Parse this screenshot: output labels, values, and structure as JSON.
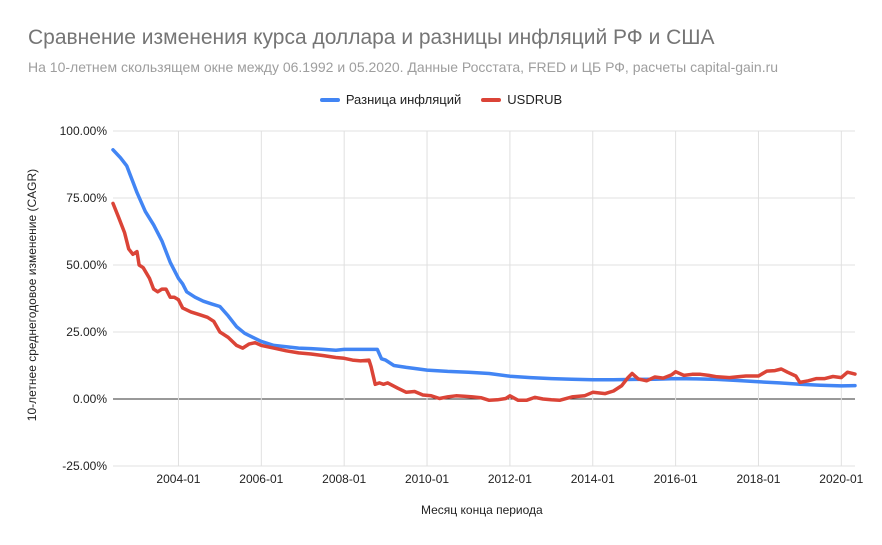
{
  "chart_data": {
    "type": "line",
    "title": "Сравнение изменения курса доллара и разницы инфляций РФ и США",
    "subtitle": "На 10-летнем скользящем окне между 06.1992 и 05.2020. Данные Росстата, FRED и ЦБ РФ, расчеты capital-gain.ru",
    "xlabel": "Месяц конца периода",
    "ylabel": "10-летнее среднегодовое изменение (CAGR)",
    "ylim": [
      -25,
      100
    ],
    "yticks": [
      "100.00%",
      "75.00%",
      "50.00%",
      "25.00%",
      "0.00%",
      "-25.00%"
    ],
    "ytick_values": [
      100,
      75,
      50,
      25,
      0,
      -25
    ],
    "xlim": [
      2002.42,
      2020.33
    ],
    "xticks": [
      "2004-01",
      "2006-01",
      "2008-01",
      "2010-01",
      "2012-01",
      "2014-01",
      "2016-01",
      "2018-01",
      "2020-01"
    ],
    "xtick_values": [
      2004,
      2006,
      2008,
      2010,
      2012,
      2014,
      2016,
      2018,
      2020
    ],
    "legend_position": "top",
    "grid": true,
    "series": [
      {
        "name": "Разница инфляций",
        "color": "#4285f4",
        "points": [
          [
            2002.42,
            93
          ],
          [
            2002.6,
            90
          ],
          [
            2002.75,
            87
          ],
          [
            2002.9,
            81
          ],
          [
            2003.0,
            77
          ],
          [
            2003.2,
            70
          ],
          [
            2003.4,
            65
          ],
          [
            2003.6,
            59
          ],
          [
            2003.8,
            51
          ],
          [
            2004.0,
            45
          ],
          [
            2004.1,
            43
          ],
          [
            2004.2,
            40
          ],
          [
            2004.4,
            38
          ],
          [
            2004.6,
            36.5
          ],
          [
            2004.8,
            35.5
          ],
          [
            2005.0,
            34.5
          ],
          [
            2005.2,
            31
          ],
          [
            2005.4,
            27
          ],
          [
            2005.6,
            24.5
          ],
          [
            2005.8,
            23
          ],
          [
            2006.0,
            21.5
          ],
          [
            2006.3,
            20
          ],
          [
            2006.6,
            19.5
          ],
          [
            2006.9,
            19
          ],
          [
            2007.2,
            18.8
          ],
          [
            2007.5,
            18.5
          ],
          [
            2007.8,
            18.2
          ],
          [
            2008.0,
            18.5
          ],
          [
            2008.3,
            18.5
          ],
          [
            2008.6,
            18.5
          ],
          [
            2008.8,
            18.5
          ],
          [
            2008.9,
            15
          ],
          [
            2009.0,
            14.5
          ],
          [
            2009.2,
            12.5
          ],
          [
            2009.5,
            11.8
          ],
          [
            2009.8,
            11.2
          ],
          [
            2010.0,
            10.8
          ],
          [
            2010.5,
            10.3
          ],
          [
            2011.0,
            10
          ],
          [
            2011.5,
            9.5
          ],
          [
            2012.0,
            8.5
          ],
          [
            2012.5,
            8
          ],
          [
            2013.0,
            7.6
          ],
          [
            2013.5,
            7.4
          ],
          [
            2014.0,
            7.2
          ],
          [
            2014.5,
            7.2
          ],
          [
            2015.0,
            7.3
          ],
          [
            2015.5,
            7.4
          ],
          [
            2016.0,
            7.6
          ],
          [
            2016.5,
            7.5
          ],
          [
            2017.0,
            7.3
          ],
          [
            2017.5,
            6.9
          ],
          [
            2018.0,
            6.4
          ],
          [
            2018.5,
            6.0
          ],
          [
            2019.0,
            5.5
          ],
          [
            2019.5,
            5.1
          ],
          [
            2020.0,
            4.9
          ],
          [
            2020.33,
            5.0
          ]
        ]
      },
      {
        "name": "USDRUB",
        "color": "#db4437",
        "points": [
          [
            2002.42,
            73
          ],
          [
            2002.55,
            68
          ],
          [
            2002.7,
            62
          ],
          [
            2002.8,
            56
          ],
          [
            2002.9,
            54
          ],
          [
            2003.0,
            55
          ],
          [
            2003.05,
            50
          ],
          [
            2003.15,
            49
          ],
          [
            2003.3,
            45
          ],
          [
            2003.4,
            41
          ],
          [
            2003.5,
            40
          ],
          [
            2003.6,
            41
          ],
          [
            2003.7,
            41
          ],
          [
            2003.8,
            38
          ],
          [
            2003.9,
            38
          ],
          [
            2004.0,
            37
          ],
          [
            2004.1,
            34
          ],
          [
            2004.3,
            32.5
          ],
          [
            2004.5,
            31.5
          ],
          [
            2004.7,
            30.5
          ],
          [
            2004.85,
            29
          ],
          [
            2005.0,
            25
          ],
          [
            2005.2,
            23
          ],
          [
            2005.4,
            20
          ],
          [
            2005.55,
            19
          ],
          [
            2005.7,
            20.5
          ],
          [
            2005.85,
            21
          ],
          [
            2006.0,
            20
          ],
          [
            2006.3,
            19
          ],
          [
            2006.6,
            18
          ],
          [
            2006.9,
            17.2
          ],
          [
            2007.2,
            16.8
          ],
          [
            2007.5,
            16.2
          ],
          [
            2007.8,
            15.5
          ],
          [
            2008.0,
            15.2
          ],
          [
            2008.2,
            14.5
          ],
          [
            2008.4,
            14.2
          ],
          [
            2008.6,
            14.5
          ],
          [
            2008.65,
            12
          ],
          [
            2008.75,
            5.5
          ],
          [
            2008.85,
            6
          ],
          [
            2008.95,
            5.5
          ],
          [
            2009.05,
            6
          ],
          [
            2009.3,
            4
          ],
          [
            2009.5,
            2.5
          ],
          [
            2009.7,
            2.8
          ],
          [
            2009.9,
            1.5
          ],
          [
            2010.1,
            1.2
          ],
          [
            2010.3,
            0.2
          ],
          [
            2010.5,
            0.8
          ],
          [
            2010.7,
            1.2
          ],
          [
            2010.9,
            1.0
          ],
          [
            2011.1,
            0.8
          ],
          [
            2011.3,
            0.5
          ],
          [
            2011.5,
            -0.5
          ],
          [
            2011.7,
            -0.3
          ],
          [
            2011.9,
            0.2
          ],
          [
            2012.0,
            1.2
          ],
          [
            2012.2,
            -0.5
          ],
          [
            2012.4,
            -0.5
          ],
          [
            2012.6,
            0.6
          ],
          [
            2012.8,
            0
          ],
          [
            2013.0,
            -0.3
          ],
          [
            2013.2,
            -0.5
          ],
          [
            2013.5,
            0.8
          ],
          [
            2013.8,
            1.2
          ],
          [
            2014.0,
            2.5
          ],
          [
            2014.3,
            2.0
          ],
          [
            2014.5,
            3.0
          ],
          [
            2014.7,
            5.0
          ],
          [
            2014.85,
            8.0
          ],
          [
            2014.95,
            9.5
          ],
          [
            2015.1,
            7.5
          ],
          [
            2015.3,
            6.8
          ],
          [
            2015.5,
            8.2
          ],
          [
            2015.7,
            7.8
          ],
          [
            2015.9,
            9.0
          ],
          [
            2016.0,
            10.2
          ],
          [
            2016.2,
            8.8
          ],
          [
            2016.4,
            9.2
          ],
          [
            2016.6,
            9.2
          ],
          [
            2016.8,
            8.8
          ],
          [
            2017.0,
            8.3
          ],
          [
            2017.3,
            8.0
          ],
          [
            2017.5,
            8.3
          ],
          [
            2017.7,
            8.6
          ],
          [
            2017.9,
            8.6
          ],
          [
            2018.0,
            8.6
          ],
          [
            2018.2,
            10.4
          ],
          [
            2018.4,
            10.6
          ],
          [
            2018.55,
            11.2
          ],
          [
            2018.7,
            10.0
          ],
          [
            2018.9,
            8.6
          ],
          [
            2019.0,
            6.2
          ],
          [
            2019.2,
            6.8
          ],
          [
            2019.4,
            7.6
          ],
          [
            2019.6,
            7.6
          ],
          [
            2019.8,
            8.4
          ],
          [
            2020.0,
            8.0
          ],
          [
            2020.15,
            10.0
          ],
          [
            2020.33,
            9.3
          ]
        ]
      }
    ]
  }
}
